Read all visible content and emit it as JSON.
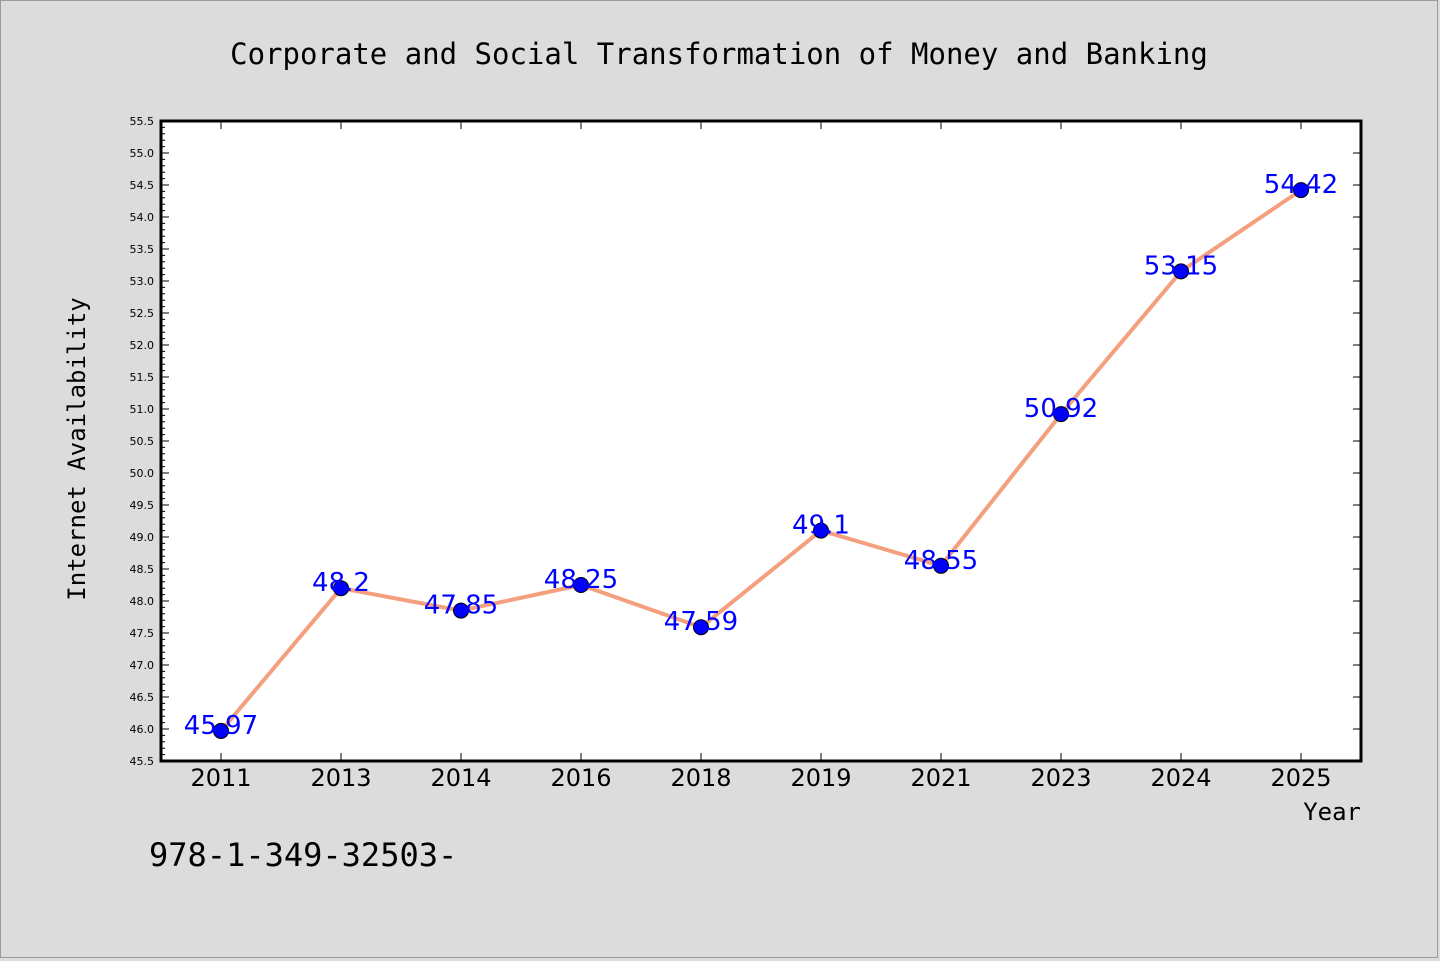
{
  "chart_data": {
    "type": "line",
    "title": "Corporate and Social Transformation of Money and Banking",
    "xlabel": "Year",
    "ylabel": "Internet Availability",
    "categories": [
      "2011",
      "2013",
      "2014",
      "2016",
      "2018",
      "2019",
      "2021",
      "2023",
      "2024",
      "2025"
    ],
    "series": [
      {
        "values": [
          45.97,
          48.2,
          47.85,
          48.25,
          47.59,
          49.1,
          48.55,
          50.92,
          53.15,
          54.42
        ],
        "labels": [
          "45.97",
          "48.2",
          "47.85",
          "48.25",
          "47.59",
          "49.1",
          "48.55",
          "50.92",
          "53.15",
          "54.42"
        ]
      }
    ],
    "ylim": [
      45.5,
      55.5
    ],
    "yticks": [
      "45.5",
      "46.0",
      "46.5",
      "47.0",
      "47.5",
      "48.0",
      "48.5",
      "49.0",
      "49.5",
      "50.0",
      "50.5",
      "51.0",
      "51.5",
      "52.0",
      "52.5",
      "53.0",
      "53.5",
      "54.0",
      "54.5",
      "55.0",
      "55.5"
    ],
    "grid": false,
    "line_color": "#f4a07f",
    "marker_color": "#0000ff",
    "data_label_color": "#0000ff",
    "plot_background": "#ffffff",
    "figure_background": "#dcdcdc"
  },
  "footnote": "978-1-349-32503-"
}
